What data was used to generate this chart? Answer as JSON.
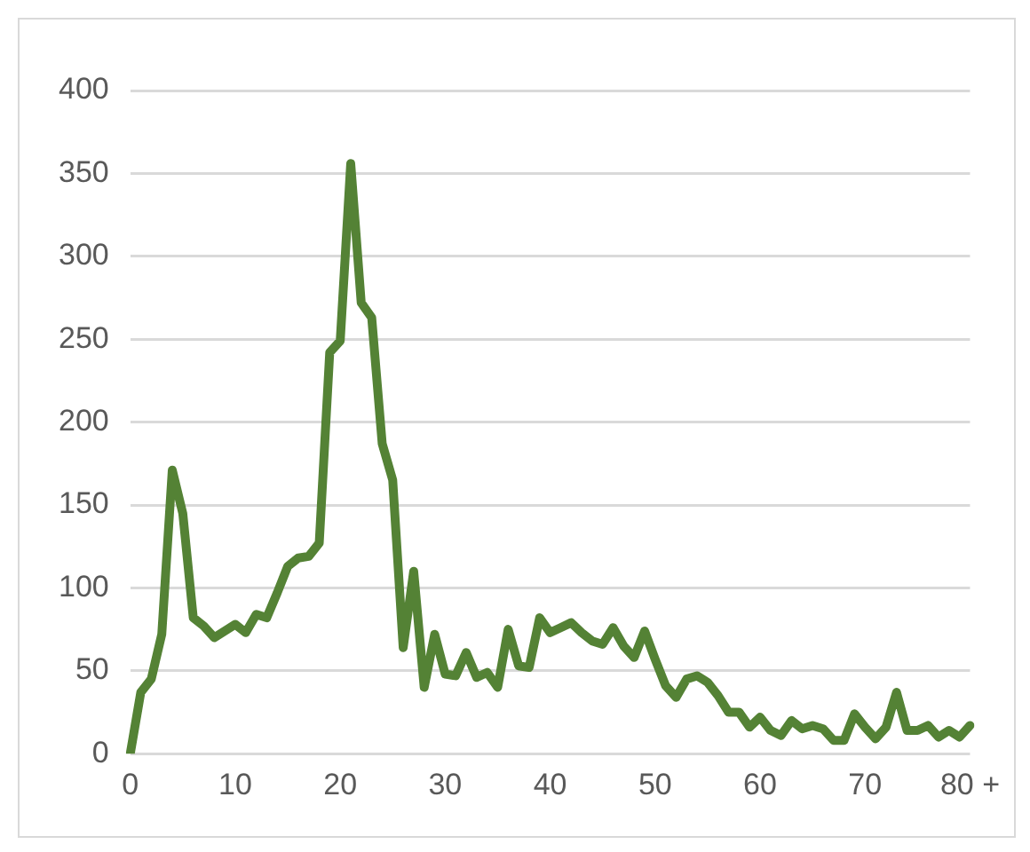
{
  "chart_data": {
    "type": "line",
    "categories": [
      "0",
      null,
      null,
      null,
      null,
      null,
      null,
      null,
      null,
      null,
      "10",
      null,
      null,
      null,
      null,
      null,
      null,
      null,
      null,
      null,
      "20",
      null,
      null,
      null,
      null,
      null,
      null,
      null,
      null,
      null,
      "30",
      null,
      null,
      null,
      null,
      null,
      null,
      null,
      null,
      null,
      "40",
      null,
      null,
      null,
      null,
      null,
      null,
      null,
      null,
      null,
      "50",
      null,
      null,
      null,
      null,
      null,
      null,
      null,
      null,
      null,
      "60",
      null,
      null,
      null,
      null,
      null,
      null,
      null,
      null,
      null,
      "70",
      null,
      null,
      null,
      null,
      null,
      null,
      null,
      null,
      null,
      "80 +"
    ],
    "series": [
      {
        "color": "#548235",
        "values": [
          0,
          37,
          45,
          72,
          171,
          145,
          82,
          77,
          70,
          74,
          78,
          73,
          84,
          82,
          97,
          113,
          118,
          119,
          127,
          242,
          249,
          356,
          272,
          263,
          187,
          165,
          64,
          110,
          40,
          72,
          48,
          47,
          61,
          46,
          49,
          40,
          75,
          53,
          52,
          82,
          73,
          76,
          79,
          73,
          68,
          66,
          76,
          65,
          58,
          74,
          57,
          41,
          34,
          45,
          47,
          43,
          35,
          25,
          25,
          16,
          22,
          14,
          11,
          20,
          15,
          17,
          15,
          8,
          8,
          24,
          16,
          9,
          16,
          37,
          14,
          14,
          17,
          10,
          14,
          10,
          17
        ]
      }
    ],
    "ylim": [
      0,
      400
    ],
    "yticks": [
      0,
      50,
      100,
      150,
      200,
      250,
      300,
      350,
      400
    ],
    "grid": "y",
    "legend": false,
    "marker": "none",
    "line_style": "solid"
  }
}
